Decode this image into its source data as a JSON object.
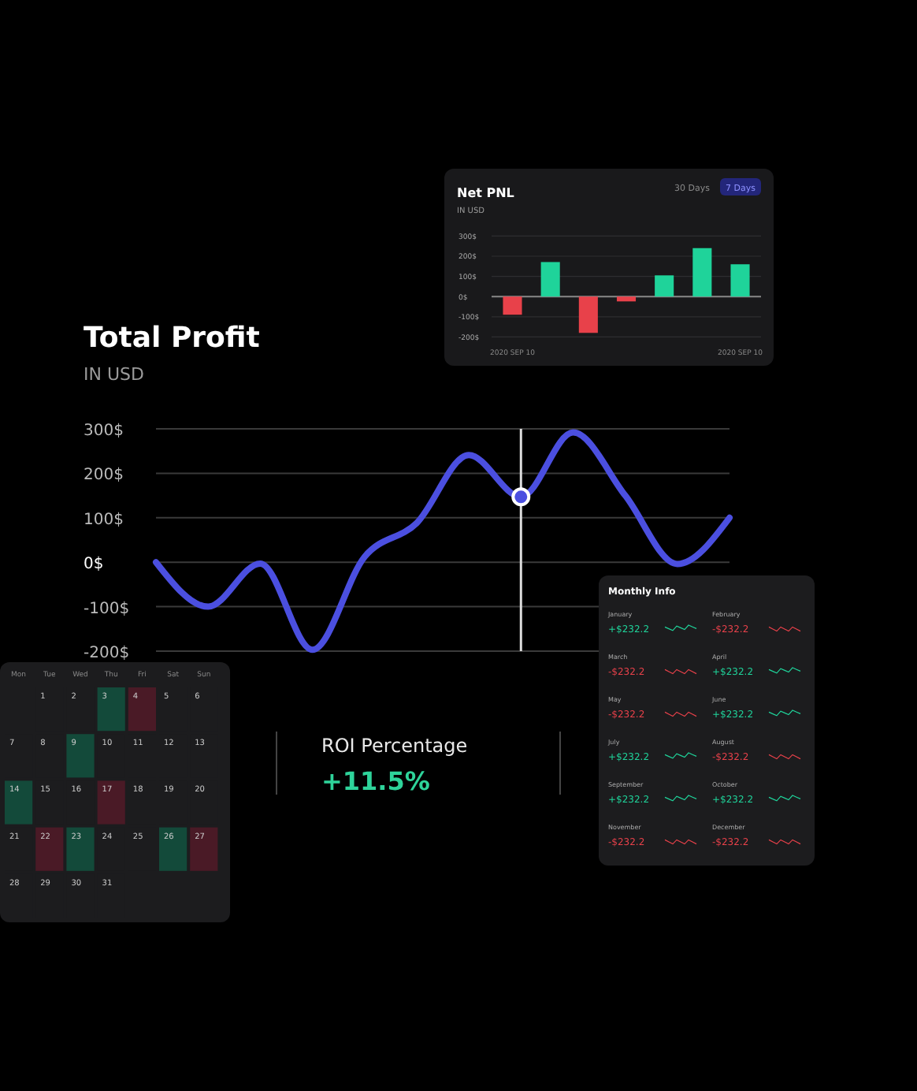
{
  "chart_data": [
    {
      "type": "line",
      "title": "Total Profit",
      "subtitle": "IN USD",
      "categories": [
        null,
        null,
        null,
        null,
        null,
        null,
        null,
        null,
        null,
        null,
        null,
        null
      ],
      "series": [
        {
          "color": "#4b4fe0",
          "values": [
            0,
            -100,
            -3,
            -197,
            12,
            88,
            241,
            147,
            292,
            150,
            -4,
            100
          ]
        }
      ],
      "ylim": [
        -200,
        300
      ],
      "yticks": [
        {
          "value": 300,
          "label": "300$"
        },
        {
          "value": 200,
          "label": "200$"
        },
        {
          "value": 100,
          "label": "100$"
        },
        {
          "value": 0,
          "label": "0$"
        },
        {
          "value": -100,
          "label": "-100$"
        },
        {
          "value": -200,
          "label": "-200$"
        }
      ],
      "grid": "y",
      "marker": "none",
      "line_style": "solid",
      "tick_labels": "y"
    },
    {
      "type": "bar",
      "title": "Net PNL",
      "subtitle": "IN USD",
      "categories": [
        "2020 SEP 10",
        null,
        null,
        null,
        null,
        null,
        "2020 SEP 10"
      ],
      "values": [
        -90,
        171,
        -180,
        -24,
        105,
        240,
        160
      ],
      "colors": [
        "#e8414a",
        "#1fd39a",
        "#e8414a",
        "#e8414a",
        "#1fd39a",
        "#1fd39a",
        "#1fd39a"
      ],
      "ylim": [
        -200,
        300
      ],
      "yticks": [
        {
          "value": 300,
          "label": "300$"
        },
        {
          "value": 200,
          "label": "200$"
        },
        {
          "value": 100,
          "label": "100$"
        },
        {
          "value": 0,
          "label": "0$"
        },
        {
          "value": -100,
          "label": "-100$"
        },
        {
          "value": -200,
          "label": "-200$"
        }
      ],
      "grid": "y",
      "annotations": [
        "30 Days",
        "7 Days"
      ]
    },
    {
      "type": "other",
      "title": "ROI Percentage",
      "annotations": [
        "+11.5%"
      ]
    },
    {
      "type": "other",
      "title": "Monthly Info",
      "categories": [
        "January",
        "February",
        "March",
        "April",
        "May",
        "June",
        "July",
        "August",
        "September",
        "October",
        "November",
        "December"
      ],
      "values": [
        232.2,
        -232.2,
        -232.2,
        232.2,
        -232.2,
        232.2,
        232.2,
        -232.2,
        232.2,
        232.2,
        -232.2,
        -232.2
      ],
      "value_labels": [
        "+$232.2",
        "-$232.2",
        "-$232.2",
        "+$232.2",
        "-$232.2",
        "+$232.2",
        "+$232.2",
        "-$232.2",
        "+$232.2",
        "+$232.2",
        "-$232.2",
        "-$232.2"
      ]
    },
    {
      "type": "heatmap",
      "categories": [
        "Mon",
        "Tue",
        "Wed",
        "Thu",
        "Fri",
        "Sat",
        "Sun"
      ],
      "y_categories": [
        null,
        null,
        null,
        null,
        null
      ],
      "data_labels": true,
      "cells": [
        [
          null,
          1,
          2,
          3,
          4,
          5,
          6
        ],
        [
          7,
          8,
          9,
          10,
          11,
          12,
          13
        ],
        [
          14,
          15,
          16,
          17,
          18,
          19,
          20
        ],
        [
          21,
          22,
          23,
          24,
          25,
          26,
          27
        ],
        [
          28,
          29,
          30,
          31,
          null,
          null,
          null
        ]
      ],
      "colors": [
        [
          null,
          null,
          null,
          "#134a3a",
          "#4a1a26",
          null,
          null
        ],
        [
          null,
          null,
          "#134a3a",
          null,
          null,
          null,
          null
        ],
        [
          "#134a3a",
          null,
          null,
          "#4a1a26",
          null,
          null,
          null
        ],
        [
          null,
          "#4a1a26",
          "#134a3a",
          null,
          null,
          "#134a3a",
          "#4a1a26"
        ],
        [
          null,
          null,
          null,
          null,
          null,
          null,
          null
        ]
      ]
    }
  ]
}
